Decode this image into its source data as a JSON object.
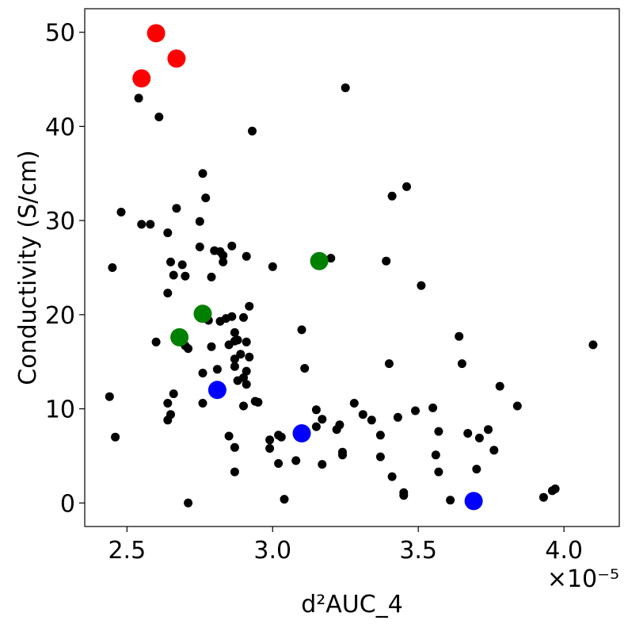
{
  "chart_data": {
    "type": "scatter",
    "title": "",
    "xlabel": "d²AUC_4",
    "ylabel": "Conductivity (S/cm)",
    "x_multiplier_label": "×10⁻⁵",
    "x_scale": 1e-05,
    "xlim": [
      2.355,
      4.19
    ],
    "ylim": [
      -2.5,
      52.5
    ],
    "x_ticks": [
      2.5,
      3.0,
      3.5,
      4.0
    ],
    "x_tick_labels": [
      "2.5",
      "3.0",
      "3.5",
      "4.0"
    ],
    "y_ticks": [
      0,
      10,
      20,
      30,
      40,
      50
    ],
    "y_tick_labels": [
      "0",
      "10",
      "20",
      "30",
      "40",
      "50"
    ],
    "grid": false,
    "legend": "none",
    "colors": {
      "black": "#000000",
      "red": "#ff0000",
      "green": "#008000",
      "blue": "#0000ff"
    },
    "series": [
      {
        "color": "black",
        "size": "small",
        "points": [
          [
            2.44,
            11.3
          ],
          [
            2.45,
            25.0
          ],
          [
            2.46,
            7.0
          ],
          [
            2.48,
            30.9
          ],
          [
            2.54,
            43.0
          ],
          [
            2.55,
            29.6
          ],
          [
            2.58,
            29.6
          ],
          [
            2.6,
            17.1
          ],
          [
            2.61,
            41.0
          ],
          [
            2.64,
            28.7
          ],
          [
            2.64,
            10.6
          ],
          [
            2.64,
            8.8
          ],
          [
            2.64,
            22.3
          ],
          [
            2.65,
            9.4
          ],
          [
            2.65,
            25.6
          ],
          [
            2.66,
            24.2
          ],
          [
            2.66,
            11.6
          ],
          [
            2.67,
            31.3
          ],
          [
            2.69,
            25.3
          ],
          [
            2.7,
            24.1
          ],
          [
            2.7,
            16.7
          ],
          [
            2.71,
            16.4
          ],
          [
            2.71,
            0.0
          ],
          [
            2.75,
            29.9
          ],
          [
            2.75,
            27.2
          ],
          [
            2.76,
            35.0
          ],
          [
            2.76,
            10.6
          ],
          [
            2.76,
            13.8
          ],
          [
            2.77,
            32.4
          ],
          [
            2.78,
            19.4
          ],
          [
            2.79,
            24.0
          ],
          [
            2.79,
            16.6
          ],
          [
            2.8,
            26.8
          ],
          [
            2.81,
            14.2
          ],
          [
            2.82,
            26.7
          ],
          [
            2.82,
            19.3
          ],
          [
            2.83,
            26.3
          ],
          [
            2.83,
            25.6
          ],
          [
            2.84,
            19.6
          ],
          [
            2.85,
            16.8
          ],
          [
            2.85,
            7.1
          ],
          [
            2.86,
            19.8
          ],
          [
            2.86,
            27.3
          ],
          [
            2.87,
            17.2
          ],
          [
            2.87,
            18.1
          ],
          [
            2.87,
            15.3
          ],
          [
            2.87,
            14.5
          ],
          [
            2.87,
            5.9
          ],
          [
            2.87,
            3.3
          ],
          [
            2.88,
            17.3
          ],
          [
            2.88,
            13.0
          ],
          [
            2.89,
            15.8
          ],
          [
            2.9,
            19.7
          ],
          [
            2.9,
            13.3
          ],
          [
            2.9,
            10.3
          ],
          [
            2.91,
            26.2
          ],
          [
            2.91,
            17.1
          ],
          [
            2.91,
            14.0
          ],
          [
            2.91,
            12.6
          ],
          [
            2.92,
            15.5
          ],
          [
            2.92,
            20.9
          ],
          [
            2.93,
            39.5
          ],
          [
            2.94,
            10.8
          ],
          [
            2.95,
            10.7
          ],
          [
            2.99,
            5.8
          ],
          [
            2.99,
            6.7
          ],
          [
            3.0,
            25.1
          ],
          [
            3.02,
            7.2
          ],
          [
            3.02,
            4.2
          ],
          [
            3.03,
            7.0
          ],
          [
            3.04,
            0.4
          ],
          [
            3.08,
            4.5
          ],
          [
            3.1,
            18.4
          ],
          [
            3.11,
            14.3
          ],
          [
            3.15,
            9.9
          ],
          [
            3.15,
            8.1
          ],
          [
            3.17,
            8.9
          ],
          [
            3.17,
            4.1
          ],
          [
            3.2,
            26.0
          ],
          [
            3.22,
            7.8
          ],
          [
            3.23,
            8.3
          ],
          [
            3.24,
            5.4
          ],
          [
            3.24,
            5.1
          ],
          [
            3.25,
            44.1
          ],
          [
            3.28,
            10.6
          ],
          [
            3.31,
            9.4
          ],
          [
            3.34,
            8.8
          ],
          [
            3.37,
            7.2
          ],
          [
            3.37,
            4.9
          ],
          [
            3.39,
            25.7
          ],
          [
            3.4,
            14.8
          ],
          [
            3.41,
            32.6
          ],
          [
            3.41,
            2.8
          ],
          [
            3.43,
            9.1
          ],
          [
            3.45,
            1.1
          ],
          [
            3.45,
            0.8
          ],
          [
            3.46,
            33.6
          ],
          [
            3.49,
            9.8
          ],
          [
            3.51,
            23.1
          ],
          [
            3.55,
            10.1
          ],
          [
            3.56,
            5.1
          ],
          [
            3.57,
            7.6
          ],
          [
            3.57,
            3.3
          ],
          [
            3.61,
            0.3
          ],
          [
            3.64,
            17.7
          ],
          [
            3.65,
            14.8
          ],
          [
            3.67,
            7.4
          ],
          [
            3.7,
            3.6
          ],
          [
            3.71,
            6.9
          ],
          [
            3.74,
            7.8
          ],
          [
            3.76,
            5.6
          ],
          [
            3.78,
            12.4
          ],
          [
            3.84,
            10.3
          ],
          [
            3.93,
            0.6
          ],
          [
            3.96,
            1.3
          ],
          [
            3.97,
            1.5
          ],
          [
            4.1,
            16.8
          ]
        ]
      },
      {
        "color": "red",
        "size": "large",
        "points": [
          [
            2.6,
            49.9
          ],
          [
            2.67,
            47.2
          ],
          [
            2.55,
            45.1
          ]
        ]
      },
      {
        "color": "green",
        "size": "large",
        "points": [
          [
            3.16,
            25.7
          ],
          [
            2.76,
            20.1
          ],
          [
            2.68,
            17.6
          ]
        ]
      },
      {
        "color": "blue",
        "size": "large",
        "points": [
          [
            2.81,
            12.0
          ],
          [
            3.1,
            7.4
          ],
          [
            3.69,
            0.2
          ]
        ]
      }
    ]
  }
}
